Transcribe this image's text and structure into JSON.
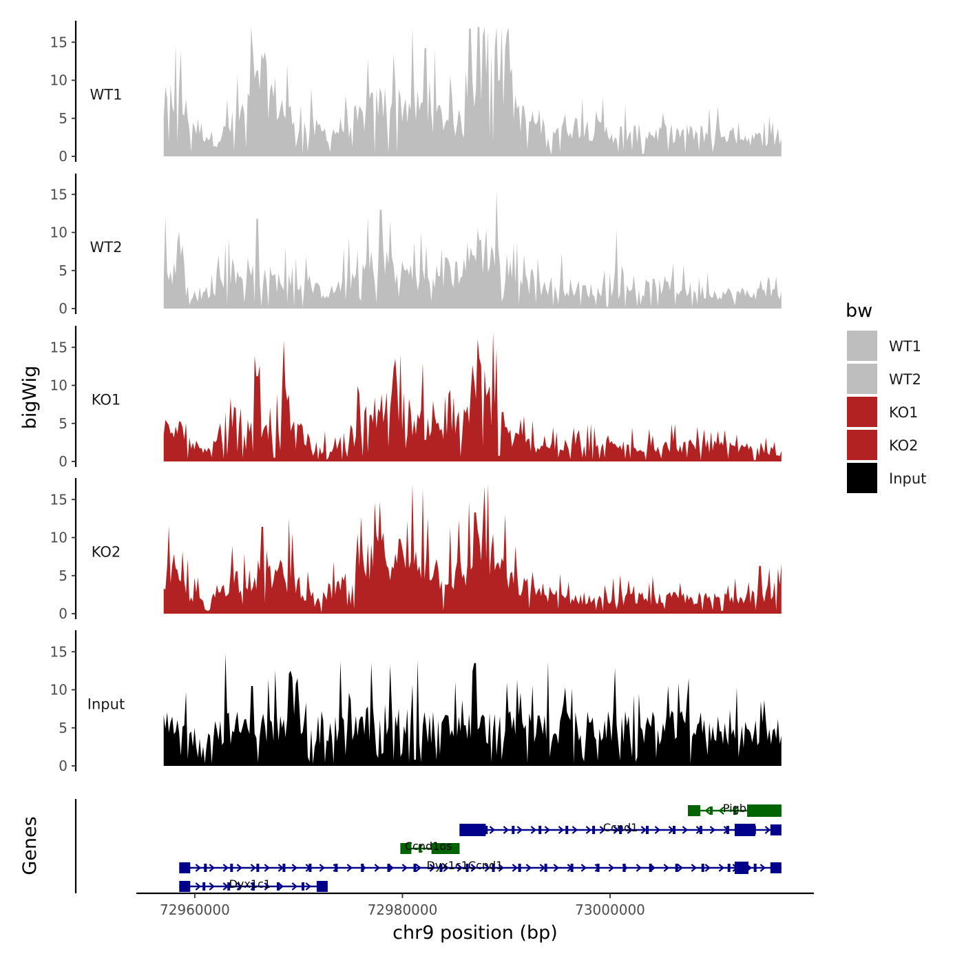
{
  "chart_data": {
    "type": "area",
    "subtype": "genome-browser coverage tracks",
    "chromosome": "chr9",
    "xlabel": "chr9 position (bp)",
    "ylabel_tracks": "bigWig",
    "ylabel_genes": "Genes",
    "xlim": [
      72954500,
      73019500
    ],
    "data_range": [
      72957000,
      73016500
    ],
    "x_ticks": [
      72960000,
      72980000,
      73000000
    ],
    "x_tick_labels": [
      "72960000",
      "72980000",
      "73000000"
    ],
    "ylim": [
      0,
      17
    ],
    "y_ticks": [
      0,
      5,
      10,
      15
    ],
    "y_tick_labels": [
      "0",
      "5",
      "10",
      "15"
    ],
    "legend": {
      "title": "bw",
      "position": "right",
      "entries": [
        {
          "label": "WT1",
          "color": "#bebebe"
        },
        {
          "label": "WT2",
          "color": "#bebebe"
        },
        {
          "label": "KO1",
          "color": "#b22222"
        },
        {
          "label": "KO2",
          "color": "#b22222"
        },
        {
          "label": "Input",
          "color": "#000000"
        }
      ]
    },
    "series": [
      {
        "name": "WT1",
        "color": "#bebebe",
        "anchors": [
          [
            72957000,
            6
          ],
          [
            72958000,
            8
          ],
          [
            72960000,
            4
          ],
          [
            72962000,
            2
          ],
          [
            72965000,
            6
          ],
          [
            72966500,
            10
          ],
          [
            72968000,
            7
          ],
          [
            72970000,
            4
          ],
          [
            72973000,
            3
          ],
          [
            72976000,
            5
          ],
          [
            72978000,
            7
          ],
          [
            72980000,
            7
          ],
          [
            72982000,
            6
          ],
          [
            72984000,
            5
          ],
          [
            72986000,
            4
          ],
          [
            72987000,
            11
          ],
          [
            72988500,
            12
          ],
          [
            72990000,
            10
          ],
          [
            72991500,
            5
          ],
          [
            72994000,
            4
          ],
          [
            72997000,
            4
          ],
          [
            73000000,
            3
          ],
          [
            73005000,
            3
          ],
          [
            73010000,
            3
          ],
          [
            73016500,
            2
          ]
        ],
        "peaks": [
          [
            72958200,
            14.8
          ],
          [
            72966400,
            13.5
          ],
          [
            72986500,
            16.8
          ],
          [
            72988300,
            16.5
          ],
          [
            72990100,
            16.2
          ],
          [
            72982200,
            14.2
          ]
        ]
      },
      {
        "name": "WT2",
        "color": "#bebebe",
        "anchors": [
          [
            72957000,
            5
          ],
          [
            72958500,
            4
          ],
          [
            72960000,
            1
          ],
          [
            72962000,
            3
          ],
          [
            72965000,
            5
          ],
          [
            72967000,
            4
          ],
          [
            72970000,
            3
          ],
          [
            72973000,
            2
          ],
          [
            72976000,
            5
          ],
          [
            72978000,
            6
          ],
          [
            72980000,
            5
          ],
          [
            72982000,
            4
          ],
          [
            72984000,
            3
          ],
          [
            72986000,
            6
          ],
          [
            72988000,
            8
          ],
          [
            72989500,
            6
          ],
          [
            72992000,
            3
          ],
          [
            72995000,
            3
          ],
          [
            73000000,
            2
          ],
          [
            73005000,
            3
          ],
          [
            73010000,
            2
          ],
          [
            73016500,
            2
          ]
        ],
        "peaks": [
          [
            72957100,
            12.2
          ],
          [
            72966000,
            11.8
          ],
          [
            72978800,
            11.5
          ],
          [
            72989000,
            15.5
          ],
          [
            72987300,
            10.5
          ],
          [
            73000600,
            10.4
          ]
        ]
      },
      {
        "name": "KO1",
        "color": "#b22222",
        "anchors": [
          [
            72957000,
            4
          ],
          [
            72958500,
            4
          ],
          [
            72960000,
            2
          ],
          [
            72961500,
            2
          ],
          [
            72963000,
            5
          ],
          [
            72965000,
            6
          ],
          [
            72967000,
            5
          ],
          [
            72968500,
            7
          ],
          [
            72970000,
            5
          ],
          [
            72971500,
            1
          ],
          [
            72973000,
            2
          ],
          [
            72975000,
            3
          ],
          [
            72977000,
            6
          ],
          [
            72979000,
            9
          ],
          [
            72980500,
            6
          ],
          [
            72982000,
            5
          ],
          [
            72984000,
            4
          ],
          [
            72986000,
            5
          ],
          [
            72987500,
            10
          ],
          [
            72989000,
            7
          ],
          [
            72990500,
            3
          ],
          [
            72993000,
            2
          ],
          [
            72996000,
            2
          ],
          [
            73000000,
            2
          ],
          [
            73005000,
            2
          ],
          [
            73010000,
            2
          ],
          [
            73016500,
            1
          ]
        ],
        "peaks": [
          [
            72968600,
            15.9
          ],
          [
            72979300,
            13.5
          ],
          [
            72987300,
            16.1
          ],
          [
            72989100,
            14.8
          ],
          [
            72966000,
            11.2
          ]
        ]
      },
      {
        "name": "KO2",
        "color": "#b22222",
        "anchors": [
          [
            72957000,
            5
          ],
          [
            72958500,
            4
          ],
          [
            72960000,
            2
          ],
          [
            72961500,
            2
          ],
          [
            72963000,
            4
          ],
          [
            72965000,
            5
          ],
          [
            72967000,
            5
          ],
          [
            72968500,
            5
          ],
          [
            72970000,
            4
          ],
          [
            72971500,
            1
          ],
          [
            72973000,
            3
          ],
          [
            72975000,
            4
          ],
          [
            72977000,
            7
          ],
          [
            72979000,
            8
          ],
          [
            72980500,
            7
          ],
          [
            72982000,
            7
          ],
          [
            72984000,
            5
          ],
          [
            72986000,
            5
          ],
          [
            72987500,
            9
          ],
          [
            72989000,
            7
          ],
          [
            72990500,
            4
          ],
          [
            72993000,
            3
          ],
          [
            72996000,
            2
          ],
          [
            73000000,
            2
          ],
          [
            73005000,
            2
          ],
          [
            73010000,
            2
          ],
          [
            73016500,
            3
          ]
        ],
        "peaks": [
          [
            72977300,
            14.6
          ],
          [
            72980500,
            12.2
          ],
          [
            72982400,
            12.6
          ],
          [
            72987000,
            13.3
          ],
          [
            72969000,
            12.5
          ],
          [
            72966500,
            11.4
          ]
        ]
      },
      {
        "name": "Input",
        "color": "#000000",
        "anchors": [
          [
            72957000,
            5
          ],
          [
            72960000,
            4
          ],
          [
            72963000,
            5
          ],
          [
            72966000,
            5
          ],
          [
            72969000,
            5
          ],
          [
            72972000,
            4
          ],
          [
            72975000,
            5
          ],
          [
            72978000,
            6
          ],
          [
            72980000,
            6
          ],
          [
            72983000,
            5
          ],
          [
            72986000,
            5
          ],
          [
            72989000,
            5
          ],
          [
            72992000,
            5
          ],
          [
            72995000,
            5
          ],
          [
            72998000,
            5
          ],
          [
            73001000,
            5
          ],
          [
            73004000,
            5
          ],
          [
            73007000,
            5
          ],
          [
            73010000,
            5
          ],
          [
            73013000,
            4
          ],
          [
            73016500,
            5
          ]
        ],
        "peaks": [
          [
            72963000,
            14.8
          ],
          [
            72974000,
            13.8
          ],
          [
            72977000,
            13.5
          ],
          [
            72987000,
            13.5
          ],
          [
            72994000,
            13.7
          ],
          [
            72965500,
            10.5
          ]
        ]
      }
    ],
    "genes": [
      {
        "name": "Pigb",
        "start": 73007500,
        "end": 73016500,
        "strand": "-",
        "row": 0,
        "color": "#006400",
        "label_pos": 73012000
      },
      {
        "name": "Ccnd1",
        "start": 72985500,
        "end": 73016500,
        "strand": "+",
        "row": 1,
        "color": "#00008b",
        "label_pos": 73001000
      },
      {
        "name": "Ccnd1os",
        "start": 72979800,
        "end": 72985500,
        "strand": "-",
        "row": 2,
        "color": "#006400",
        "label_pos": 72982500
      },
      {
        "name": "Dyx1c1Ccnd1",
        "start": 72958500,
        "end": 73016500,
        "strand": "+",
        "row": 3,
        "color": "#00008b",
        "label_pos": 72986000
      },
      {
        "name": "Dyx1c1",
        "start": 72958500,
        "end": 72972800,
        "strand": "+",
        "row": 4,
        "color": "#00008b",
        "label_pos": 72965300
      }
    ]
  }
}
